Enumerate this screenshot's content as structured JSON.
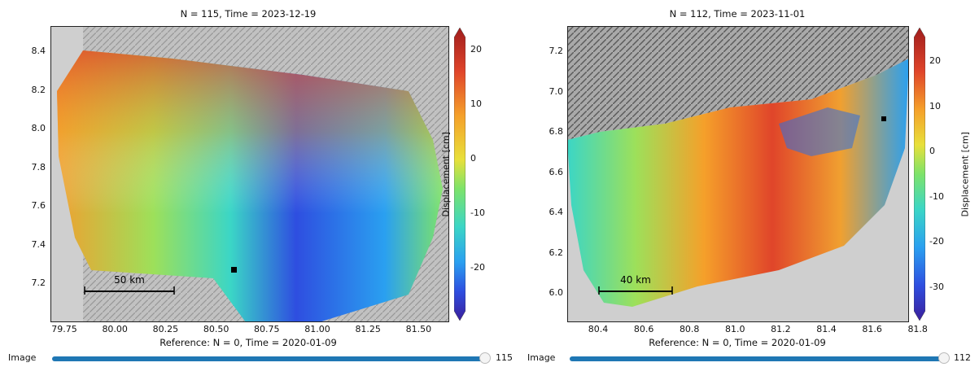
{
  "left": {
    "title": "N = 115, Time = 2023-12-19",
    "reference": "Reference: N = 0, Time = 2020-01-09",
    "yticks": [
      "8.4",
      "8.2",
      "8.0",
      "7.8",
      "7.6",
      "7.4",
      "7.2"
    ],
    "xticks": [
      "79.75",
      "80.00",
      "80.25",
      "80.50",
      "80.75",
      "81.00",
      "81.25",
      "81.50"
    ],
    "cbar_ticks": [
      "20",
      "10",
      "0",
      "-10",
      "-20"
    ],
    "cbar_label": "Displacement [cm]",
    "scalebar": "50 km",
    "slider_label": "Image",
    "slider_value": "115",
    "slider_fraction": 1.0
  },
  "right": {
    "title": "N = 112, Time = 2023-11-01",
    "reference": "Reference: N = 0, Time = 2020-01-09",
    "yticks": [
      "7.2",
      "7.0",
      "6.8",
      "6.6",
      "6.4",
      "6.2",
      "6.0"
    ],
    "xticks": [
      "80.4",
      "80.6",
      "80.8",
      "81.0",
      "81.2",
      "81.4",
      "81.6",
      "81.8"
    ],
    "cbar_ticks": [
      "20",
      "10",
      "0",
      "-10",
      "-20",
      "-30"
    ],
    "cbar_label": "Displacement [cm]",
    "scalebar": "40 km",
    "slider_label": "Image",
    "slider_value": "112",
    "slider_fraction": 1.0
  },
  "colors": {
    "colormap": [
      "#3b1f9b",
      "#2e4ee0",
      "#2aa0f0",
      "#3bd6c6",
      "#7de36a",
      "#e8e03a",
      "#f5a02a",
      "#e0452a",
      "#a01d1d"
    ],
    "slider_track": "#1f77b4",
    "hillshade_light": "#c8c8c8",
    "hillshade_dark": "#5a5a5a",
    "background": "#cfcfcf"
  }
}
